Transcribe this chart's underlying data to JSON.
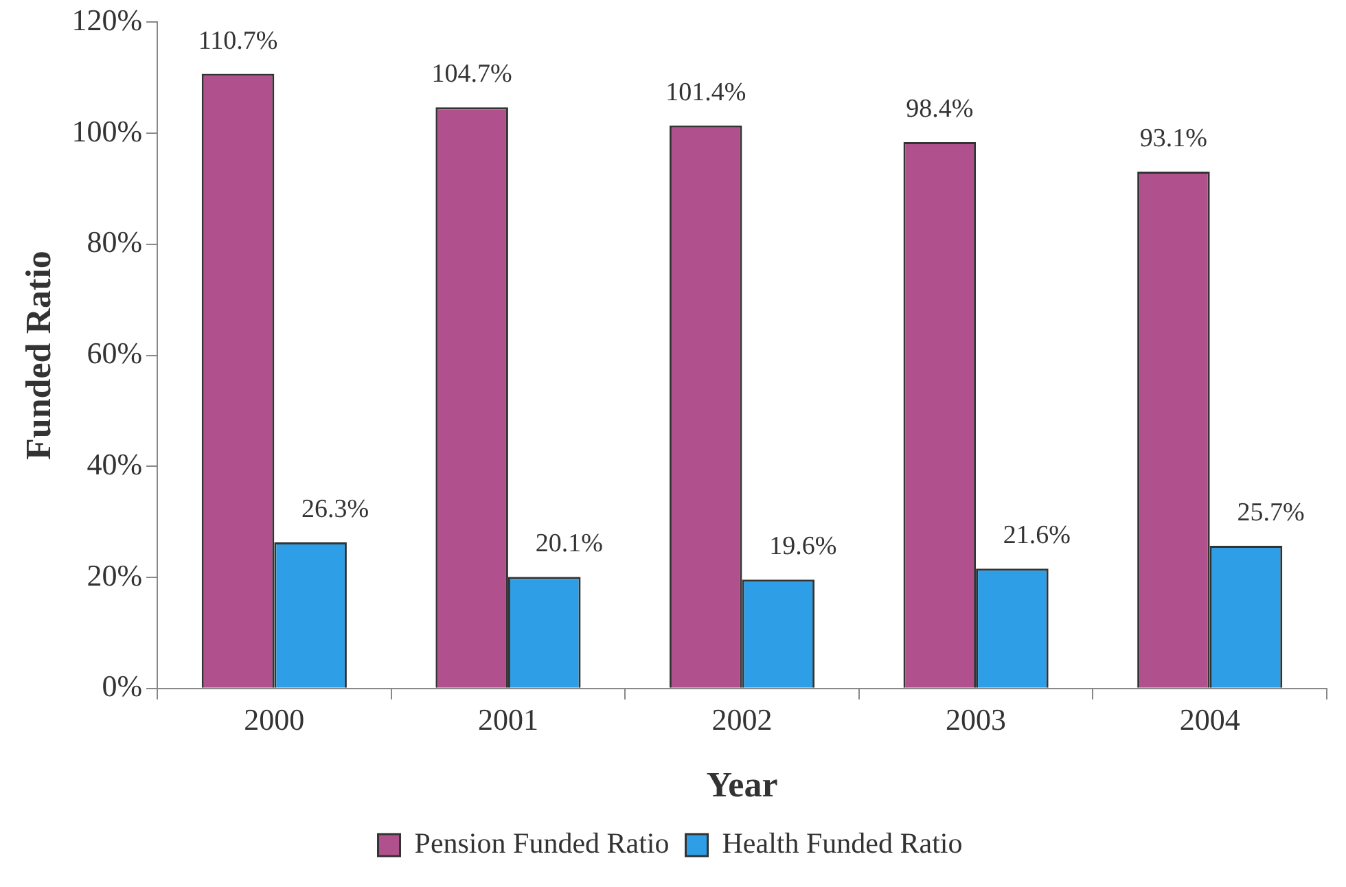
{
  "chart_data": {
    "type": "bar",
    "xlabel": "Year",
    "ylabel": "Funded Ratio",
    "categories": [
      "2000",
      "2001",
      "2002",
      "2003",
      "2004"
    ],
    "series": [
      {
        "name": "Pension Funded Ratio",
        "color": "#b0508c",
        "values": [
          110.7,
          104.7,
          101.4,
          98.4,
          93.1
        ],
        "value_labels": [
          "110.7%",
          "104.7%",
          "101.4%",
          "98.4%",
          "93.1%"
        ]
      },
      {
        "name": "Health Funded Ratio",
        "color": "#2e9fe6",
        "values": [
          26.3,
          20.1,
          19.6,
          21.6,
          25.7
        ],
        "value_labels": [
          "26.3%",
          "20.1%",
          "19.6%",
          "21.6%",
          "25.7%"
        ]
      }
    ],
    "ylim": [
      0,
      120
    ],
    "yticks": [
      {
        "value": 0,
        "label": "0%"
      },
      {
        "value": 20,
        "label": "20%"
      },
      {
        "value": 40,
        "label": "40%"
      },
      {
        "value": 60,
        "label": "60%"
      },
      {
        "value": 80,
        "label": "80%"
      },
      {
        "value": 100,
        "label": "100%"
      },
      {
        "value": 120,
        "label": "120%"
      }
    ],
    "legend": "bottom"
  }
}
